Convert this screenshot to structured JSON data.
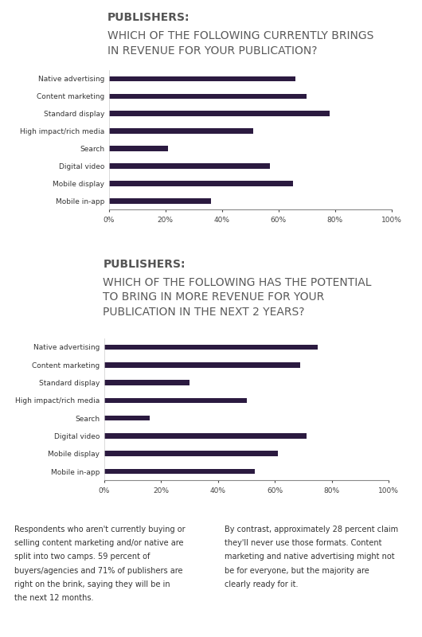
{
  "chart_data": [
    {
      "type": "bar",
      "orientation": "horizontal",
      "title": "PUBLISHERS:",
      "subtitle": "WHICH OF THE FOLLOWING CURRENTLY BRINGS IN REVENUE FOR YOUR PUBLICATION?",
      "categories": [
        "Native advertising",
        "Content marketing",
        "Standard display",
        "High impact/rich media",
        "Search",
        "Digital video",
        "Mobile display",
        "Mobile in-app"
      ],
      "values": [
        66,
        70,
        78,
        51,
        21,
        57,
        65,
        36
      ],
      "color": "#2b1a40",
      "xlim": [
        0,
        100
      ],
      "xticks": [
        {
          "value": 0,
          "label": "0%"
        },
        {
          "value": 20,
          "label": "20%"
        },
        {
          "value": 40,
          "label": "40%"
        },
        {
          "value": 60,
          "label": "60%"
        },
        {
          "value": 80,
          "label": "80%"
        },
        {
          "value": 100,
          "label": "100%"
        }
      ],
      "grid": false
    },
    {
      "type": "bar",
      "orientation": "horizontal",
      "title": "PUBLISHERS:",
      "subtitle": "WHICH OF THE FOLLOWING HAS THE POTENTIAL TO BRING IN MORE REVENUE FOR YOUR PUBLICATION IN THE NEXT 2 YEARS?",
      "categories": [
        "Native advertising",
        "Content marketing",
        "Standard display",
        "High impact/rich media",
        "Search",
        "Digital video",
        "Mobile display",
        "Mobile in-app"
      ],
      "values": [
        75,
        69,
        30,
        50,
        16,
        71,
        61,
        53
      ],
      "color": "#2b1a40",
      "xlim": [
        0,
        100
      ],
      "xticks": [
        {
          "value": 0,
          "label": "0%"
        },
        {
          "value": 20,
          "label": "20%"
        },
        {
          "value": 40,
          "label": "40%"
        },
        {
          "value": 60,
          "label": "60%"
        },
        {
          "value": 80,
          "label": "80%"
        },
        {
          "value": 100,
          "label": "100%"
        }
      ],
      "grid": false
    }
  ],
  "body_text": [
    "Respondents who aren't currently buying or selling content marketing and/or native are split into two camps. 59 percent of buyers/agencies and 71% of publishers are right on the brink, saying they will be in the next 12 months.",
    "By contrast, approximately 28 percent claim they'll never use those formats. Content marketing and native advertising might not be for everyone, but the majority are clearly ready for it."
  ]
}
